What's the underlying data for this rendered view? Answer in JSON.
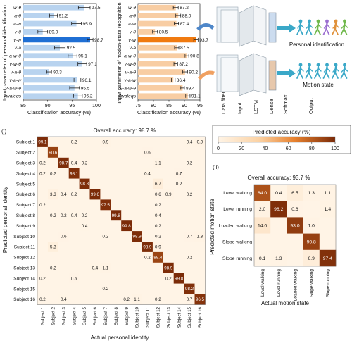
{
  "colors": {
    "blue_bar": "#b8d3ef",
    "blue_bar_highlight": "#1f6fd4",
    "orange_bar": "#f8cda3",
    "orange_bar_highlight": "#f07a10",
    "heat_low": "#fff4e6",
    "heat_high": "#7a2a08",
    "network_arrow": "#4e87c9",
    "output_teal": "#3aa8c8"
  },
  "chart_data": [
    {
      "type": "bar",
      "orientation": "horizontal",
      "ylabel": "Input parameter of personal identification",
      "xlabel": "Classification accuracy (%)",
      "xlim": [
        85,
        100
      ],
      "xticks": [
        "85",
        "90",
        "95",
        "100"
      ],
      "categories": [
        "w-θ",
        "a-θ",
        "a-w",
        "v-θ",
        "v-w",
        "v-a",
        "a-w-θ",
        "v-w-θ",
        "v-a-θ",
        "v-a-w",
        "v-a-w-θ",
        "7waleqs"
      ],
      "values": [
        97.5,
        91.2,
        95.9,
        89.0,
        98.7,
        92.5,
        95.1,
        97.1,
        90.3,
        96.1,
        95.5,
        96.2
      ],
      "labels": [
        "97.5",
        "91.2",
        "95.9",
        "89.0",
        "98.7",
        "92.5",
        "95.1",
        "97.1",
        "90.3",
        "96.1",
        "95.5",
        "96.2"
      ],
      "errors": [
        1.2,
        0.8,
        1.0,
        1.0,
        0.6,
        1.1,
        0.9,
        0.9,
        0.5,
        0.7,
        1.0,
        0.9
      ],
      "highlight_index": 4
    },
    {
      "type": "bar",
      "orientation": "horizontal",
      "ylabel": "Input parameter of motion-state recognition",
      "xlabel": "Classification accuracy (%)",
      "xlim": [
        75,
        95
      ],
      "xticks": [
        "75",
        "80",
        "85",
        "90",
        "95"
      ],
      "categories": [
        "w-θ",
        "a-θ",
        "a-w",
        "v-θ",
        "v-w",
        "v-a",
        "a-w-θ",
        "v-w-θ",
        "v-a-θ",
        "v-a-w",
        "v-a-w-θ",
        "7waleqs"
      ],
      "values": [
        87.2,
        88.0,
        87.4,
        80.5,
        93.7,
        87.5,
        90.8,
        87.2,
        90.2,
        86.4,
        89.4,
        91.1
      ],
      "labels": [
        "87.2",
        "88.0",
        "87.4",
        "80.5",
        "93.7",
        "87.5",
        "90.8",
        "87.2",
        "90.2",
        "86.4",
        "89.4",
        "91.1"
      ],
      "errors": [
        0.8,
        0.8,
        0.7,
        0.8,
        0.7,
        0.7,
        0.6,
        0.6,
        0.8,
        0.6,
        0.6,
        0.7
      ],
      "highlight_index": 4
    },
    {
      "type": "heatmap",
      "panel_label": "(i)",
      "title": "Overall accuracy: 98.7 %",
      "xlabel": "Actual  personal identity",
      "ylabel": "Predicted personal identity",
      "colorbar_title": "Predicted accuracy (%)",
      "colorbar_ticks": [
        "0",
        "20",
        "40",
        "60",
        "80",
        "100"
      ],
      "colorbar_range": [
        0,
        100
      ],
      "rows": [
        "Subject 1",
        "Subject 2",
        "Subject 3",
        "Subject 4",
        "Subject 5",
        "Subject 6",
        "Subject 7",
        "Subject 8",
        "Subject 9",
        "Subject 10",
        "Subject 11",
        "Subject 12",
        "Subject 13",
        "Subject 14",
        "Subject 15",
        "Subject 16"
      ],
      "cols": [
        "Subject 1",
        "Subject 2",
        "Subject 3",
        "Subject 4",
        "Subject 5",
        "Subject 6",
        "Subject 7",
        "Subject 8",
        "Subject 9",
        "Subject 10",
        "Subject 11",
        "Subject 12",
        "Subject 13",
        "Subject 14",
        "Subject 15",
        "Subject 16"
      ],
      "matrix": [
        [
          "99.1",
          "",
          "",
          "0.2",
          "",
          "",
          "0.9",
          "",
          "",
          "",
          "",
          "",
          "",
          "",
          "0.4",
          "0.9"
        ],
        [
          "",
          "90.6",
          "",
          "",
          "",
          "",
          "",
          "",
          "",
          "",
          "0.6",
          "",
          "",
          "",
          "",
          ""
        ],
        [
          "0.2",
          "",
          "98.7",
          "0.4",
          "0.2",
          "",
          "",
          "",
          "",
          "",
          "",
          "1.1",
          "",
          "",
          "0.2",
          ""
        ],
        [
          "0.2",
          "0.2",
          "",
          "98.1",
          "",
          "",
          "",
          "",
          "",
          "",
          "0.4",
          "",
          "",
          "0.7",
          "",
          ""
        ],
        [
          "",
          "",
          "",
          "",
          "98.8",
          "",
          "",
          "",
          "",
          "",
          "",
          "6.7",
          "",
          "0.2",
          "",
          ""
        ],
        [
          "",
          "3.3",
          "0.4",
          "0.2",
          "",
          "99.6",
          "",
          "",
          "",
          "",
          "",
          "0.6",
          "0.9",
          "",
          "0.2",
          ""
        ],
        [
          "0.2",
          "",
          "",
          "",
          "",
          "",
          "97.5",
          "",
          "",
          "",
          "",
          "0.2",
          "",
          "",
          "",
          ""
        ],
        [
          "",
          "0.2",
          "0.2",
          "0.4",
          "0.2",
          "",
          "",
          "99.8",
          "",
          "",
          "",
          "0.4",
          "",
          "",
          "",
          ""
        ],
        [
          "",
          "",
          "",
          "",
          "0.4",
          "",
          "",
          "",
          "99.8",
          "",
          "",
          "0.2",
          "",
          "",
          "",
          ""
        ],
        [
          "",
          "",
          "0.6",
          "",
          "",
          "",
          "0.2",
          "",
          "",
          "98.9",
          "",
          "0.2",
          "",
          "",
          "0.7",
          "1.3"
        ],
        [
          "",
          "5.3",
          "",
          "",
          "",
          "",
          "",
          "",
          "",
          "",
          "98.9",
          "0.9",
          "",
          "",
          "",
          ""
        ],
        [
          "",
          "",
          "",
          "",
          "",
          "",
          "",
          "",
          "",
          "",
          "0.2",
          "89.4",
          "",
          "",
          "0.2",
          ""
        ],
        [
          "",
          "0.2",
          "",
          "",
          "",
          "0.4",
          "1.1",
          "",
          "",
          "",
          "",
          "",
          "98.9",
          "",
          "",
          ""
        ],
        [
          "0.2",
          "",
          "",
          "0.6",
          "",
          "",
          "",
          "",
          "",
          "",
          "",
          "",
          "0.2",
          "99.8",
          "",
          ""
        ],
        [
          "",
          "",
          "",
          "",
          "",
          "",
          "0.2",
          "",
          "",
          "",
          "",
          "",
          "",
          "",
          "98.2",
          ""
        ],
        [
          "0.2",
          "",
          "0.4",
          "",
          "",
          "",
          "",
          "",
          "0.2",
          "1.1",
          "",
          "0.2",
          "",
          "",
          "0.7",
          "96.5"
        ]
      ]
    },
    {
      "type": "heatmap",
      "panel_label": "(ii)",
      "title": "Overall accuracy: 93.7 %",
      "xlabel": "Actual motion state",
      "ylabel": "Predicted motion state",
      "rows": [
        "Level walking",
        "Level running",
        "Loaded walking",
        "Slope walking",
        "Slope running"
      ],
      "cols": [
        "Level walking",
        "Level running",
        "Loaded walking",
        "Slope walking",
        "Slope running"
      ],
      "matrix": [
        [
          "84.0",
          "0.4",
          "6.5",
          "1.3",
          "1.1"
        ],
        [
          "2.0",
          "98.2",
          "0.6",
          "",
          "1.4"
        ],
        [
          "14.0",
          "",
          "93.0",
          "1.0",
          ""
        ],
        [
          "",
          "",
          "",
          "90.8",
          ""
        ],
        [
          "0.1",
          "1.3",
          "",
          "6.9",
          "97.4"
        ]
      ]
    }
  ],
  "diagram": {
    "stages": [
      "Data filter",
      "Input",
      "LSTM",
      "Dense",
      "Softmax",
      "Output"
    ],
    "outputs": [
      "Personal identification",
      "Motion state"
    ]
  }
}
